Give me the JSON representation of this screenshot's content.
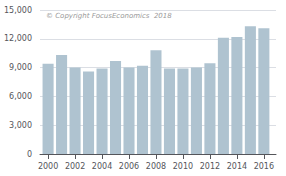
{
  "chart_data": {
    "type": "bar",
    "x": [
      2000,
      2001,
      2002,
      2003,
      2004,
      2005,
      2006,
      2007,
      2008,
      2009,
      2010,
      2011,
      2012,
      2013,
      2014,
      2015,
      2016
    ],
    "values": [
      9400,
      10300,
      9000,
      8600,
      8900,
      9700,
      9000,
      9200,
      10800,
      8900,
      8900,
      9000,
      9450,
      12100,
      12200,
      13300,
      13100
    ],
    "color": "#afc3d0",
    "xlim": [
      1999.4,
      2016.9
    ],
    "xticks": [
      2000,
      2002,
      2004,
      2006,
      2008,
      2010,
      2012,
      2014,
      2016
    ],
    "ylim": [
      0,
      15000
    ],
    "yticks": [
      0,
      {
        "value": 3000,
        "label": "3,000"
      },
      {
        "value": 6000,
        "label": "6,000"
      },
      {
        "value": 9000,
        "label": "9,000"
      },
      {
        "value": 12000,
        "label": "12,000"
      },
      {
        "value": 15000,
        "label": "15,000"
      }
    ],
    "grid": true,
    "annotation": "© Copyright FocusEconomics  2018"
  }
}
